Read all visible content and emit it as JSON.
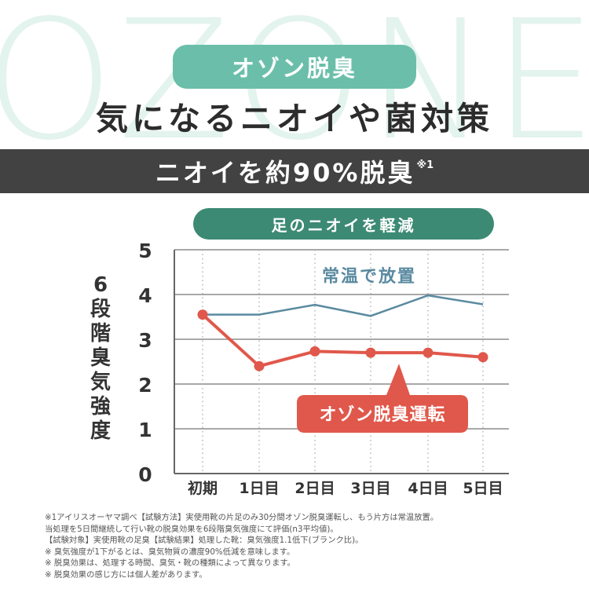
{
  "watermark": "OZONE",
  "tag": "オゾン脱臭",
  "headline": "気になるニオイや菌対策",
  "claim": {
    "text": "ニオイを約90%脱臭",
    "note": "※1"
  },
  "chart_data": {
    "type": "line",
    "title": "足のニオイを軽減",
    "ylabel": "6段階臭気強度",
    "xlabel": "",
    "categories": [
      "初期",
      "1日目",
      "2日目",
      "3日目",
      "4日目",
      "5日目"
    ],
    "yticks": [
      "0",
      "1",
      "2",
      "3",
      "4",
      "5"
    ],
    "ylim": [
      0,
      5
    ],
    "grid": true,
    "series": [
      {
        "name": "常温で放置",
        "values": [
          3.55,
          3.55,
          3.77,
          3.52,
          3.98,
          3.78
        ],
        "color": "#5a8aa0",
        "label_style": "plain"
      },
      {
        "name": "オゾン脱臭運転",
        "values": [
          3.55,
          2.4,
          2.73,
          2.7,
          2.7,
          2.6
        ],
        "color": "#e0584b",
        "label_style": "callout"
      }
    ]
  },
  "footnotes": [
    "※1アイリスオーヤマ調べ【試験方法】実使用靴の片足のみ30分間オゾン脱臭運転し、もう片方は常温放置。",
    "当処理を5日間継続して行い靴の脱臭効果を6段階臭気強度にて評価(n3平均値)。",
    "【試験対象】実使用靴の足臭【試験結果】処理した靴：臭気強度1.1低下(ブランク比)。",
    "※ 臭気強度が1下がるとは、臭気物質の濃度90%低減を意味します。",
    "※ 脱臭効果は、処理する時間、臭気・靴の種類によって異なります。",
    "※ 脱臭効果の感じ方には個人差があります。"
  ]
}
